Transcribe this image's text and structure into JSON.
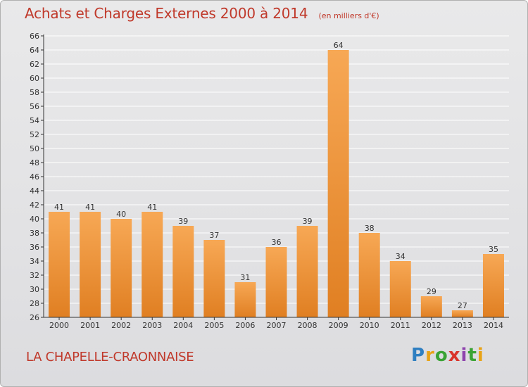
{
  "header": {
    "title": "Achats et Charges Externes 2000 à 2014",
    "subtitle": "(en milliers d'€)"
  },
  "footer": {
    "commune": "LA CHAPELLE-CRAONNAISE",
    "logo_text": "Proxiti"
  },
  "colors": {
    "bar_top": "#f7a855",
    "bar_bottom": "#e07f22",
    "title": "#c0392b",
    "axis": "#333333"
  },
  "chart_data": {
    "type": "bar",
    "title": "Achats et Charges Externes 2000 à 2014",
    "subtitle": "(en milliers d'€)",
    "categories": [
      "2000",
      "2001",
      "2002",
      "2003",
      "2004",
      "2005",
      "2006",
      "2007",
      "2008",
      "2009",
      "2010",
      "2011",
      "2012",
      "2013",
      "2014"
    ],
    "values": [
      41,
      41,
      40,
      41,
      39,
      37,
      31,
      36,
      39,
      64,
      38,
      34,
      29,
      27,
      35
    ],
    "ylim": [
      26,
      66
    ],
    "yticks": [
      26,
      28,
      30,
      32,
      34,
      36,
      38,
      40,
      42,
      44,
      46,
      48,
      50,
      52,
      54,
      56,
      58,
      60,
      62,
      64,
      66
    ],
    "grid": true,
    "data_labels": true
  }
}
